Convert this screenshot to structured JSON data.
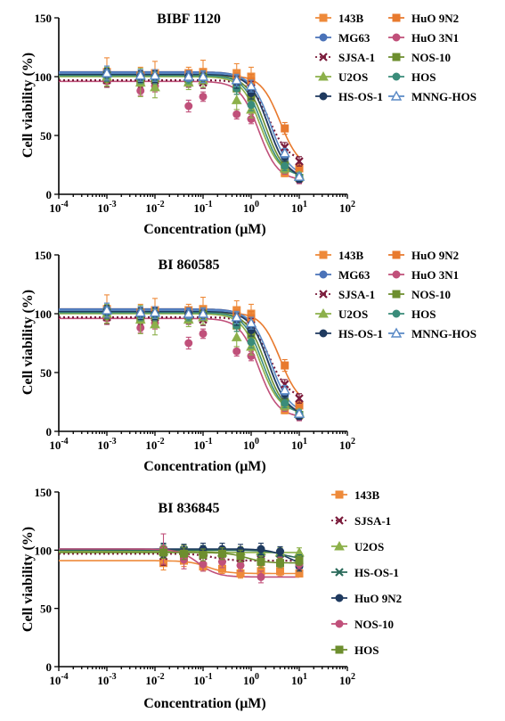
{
  "chart_data": [
    {
      "type": "scatter",
      "title": "BIBF 1120",
      "xlabel": "Concentration (μM)",
      "ylabel": "Cell viability (%)",
      "xscale": "log",
      "xlim": [
        0.0001,
        100
      ],
      "ylim": [
        0,
        150
      ],
      "x_ticks": [
        0.0001,
        0.001,
        0.01,
        0.1,
        1,
        10,
        100
      ],
      "x_tick_labels": [
        {
          "base": "10",
          "exp": "-4"
        },
        {
          "base": "10",
          "exp": "-3"
        },
        {
          "base": "10",
          "exp": "-2"
        },
        {
          "base": "10",
          "exp": "-1"
        },
        {
          "base": "10",
          "exp": "0"
        },
        {
          "base": "10",
          "exp": "1"
        },
        {
          "base": "10",
          "exp": "2"
        }
      ],
      "y_ticks": [
        "0",
        "50",
        "100",
        "150"
      ],
      "legend": "right, two columns",
      "x": [
        0.001,
        0.005,
        0.01,
        0.05,
        0.1,
        0.5,
        1,
        5,
        10
      ],
      "series": [
        {
          "name": "143B",
          "color": "#ee8a3a",
          "marker": "square",
          "line": "solid",
          "values": [
            104,
            100,
            103,
            103,
            104,
            103,
            100,
            18,
            14
          ],
          "errors": [
            12,
            8,
            10,
            5,
            10,
            8,
            8,
            3,
            3
          ]
        },
        {
          "name": "HuO 9N2",
          "color": "#e87a2e",
          "marker": "square",
          "line": "solid",
          "values": [
            100,
            101,
            100,
            99,
            99,
            98,
            96,
            56,
            22
          ],
          "errors": [
            6,
            5,
            6,
            4,
            5,
            5,
            6,
            5,
            4
          ]
        },
        {
          "name": "MG63",
          "color": "#4a72b8",
          "marker": "circle",
          "line": "solid",
          "values": [
            104,
            101,
            100,
            101,
            100,
            96,
            88,
            30,
            14
          ],
          "errors": [
            5,
            5,
            5,
            4,
            4,
            5,
            5,
            4,
            3
          ]
        },
        {
          "name": "HuO 3N1",
          "color": "#c0507a",
          "marker": "circle",
          "line": "solid",
          "values": [
            96,
            88,
            92,
            75,
            83,
            68,
            64,
            20,
            12
          ],
          "errors": [
            5,
            4,
            5,
            5,
            4,
            4,
            4,
            3,
            3
          ]
        },
        {
          "name": "SJSA-1",
          "color": "#7a1a3a",
          "marker": "x",
          "line": "dotted",
          "values": [
            97,
            96,
            97,
            96,
            95,
            93,
            90,
            40,
            28
          ],
          "errors": [
            6,
            5,
            6,
            5,
            5,
            5,
            6,
            4,
            4
          ]
        },
        {
          "name": "NOS-10",
          "color": "#6d8e2e",
          "marker": "square",
          "line": "solid",
          "values": [
            101,
            97,
            98,
            98,
            100,
            90,
            82,
            25,
            14
          ],
          "errors": [
            6,
            5,
            5,
            4,
            5,
            5,
            5,
            4,
            3
          ]
        },
        {
          "name": "U2OS",
          "color": "#8cb04a",
          "marker": "triangle",
          "line": "solid",
          "values": [
            100,
            95,
            91,
            95,
            97,
            80,
            72,
            22,
            16
          ],
          "errors": [
            8,
            12,
            9,
            6,
            6,
            8,
            7,
            4,
            3
          ]
        },
        {
          "name": "HOS",
          "color": "#3a8c7a",
          "marker": "circle",
          "line": "solid",
          "values": [
            101,
            99,
            99,
            98,
            99,
            90,
            76,
            24,
            15
          ],
          "errors": [
            5,
            5,
            5,
            4,
            4,
            5,
            5,
            4,
            3
          ]
        },
        {
          "name": "HS-OS-1",
          "color": "#1f3a5f",
          "marker": "circle",
          "line": "solid",
          "values": [
            102,
            100,
            100,
            100,
            99,
            95,
            86,
            32,
            13
          ],
          "errors": [
            5,
            5,
            5,
            4,
            4,
            5,
            5,
            4,
            3
          ]
        },
        {
          "name": "MNNG-HOS",
          "color": "#5a8ac6",
          "marker": "triangle-open",
          "line": "solid",
          "values": [
            103,
            101,
            101,
            100,
            100,
            97,
            92,
            35,
            15
          ],
          "errors": [
            6,
            5,
            5,
            4,
            5,
            5,
            5,
            4,
            3
          ]
        }
      ]
    },
    {
      "type": "scatter",
      "title": "BI 860585",
      "xlabel": "Concentration (μM)",
      "ylabel": "Cell viability (%)",
      "xscale": "log",
      "xlim": [
        0.0001,
        100
      ],
      "ylim": [
        0,
        150
      ],
      "x_ticks": [
        0.0001,
        0.001,
        0.01,
        0.1,
        1,
        10,
        100
      ],
      "x_tick_labels": [
        {
          "base": "10",
          "exp": "-4"
        },
        {
          "base": "10",
          "exp": "-3"
        },
        {
          "base": "10",
          "exp": "-2"
        },
        {
          "base": "10",
          "exp": "-1"
        },
        {
          "base": "10",
          "exp": "0"
        },
        {
          "base": "10",
          "exp": "1"
        },
        {
          "base": "10",
          "exp": "2"
        }
      ],
      "y_ticks": [
        "0",
        "50",
        "100",
        "150"
      ],
      "legend": "right, two columns",
      "x": [
        0.001,
        0.005,
        0.01,
        0.05,
        0.1,
        0.5,
        1,
        5,
        10
      ],
      "series": [
        {
          "name": "143B",
          "color": "#ee8a3a",
          "marker": "square",
          "line": "solid",
          "values": [
            104,
            100,
            103,
            103,
            104,
            103,
            100,
            18,
            14
          ],
          "errors": [
            12,
            8,
            10,
            5,
            10,
            8,
            8,
            3,
            3
          ]
        },
        {
          "name": "HuO 9N2",
          "color": "#e87a2e",
          "marker": "square",
          "line": "solid",
          "values": [
            100,
            101,
            100,
            99,
            99,
            98,
            96,
            56,
            22
          ],
          "errors": [
            6,
            5,
            6,
            4,
            5,
            5,
            6,
            5,
            4
          ]
        },
        {
          "name": "MG63",
          "color": "#4a72b8",
          "marker": "circle",
          "line": "solid",
          "values": [
            104,
            101,
            100,
            101,
            100,
            96,
            88,
            30,
            14
          ],
          "errors": [
            5,
            5,
            5,
            4,
            4,
            5,
            5,
            4,
            3
          ]
        },
        {
          "name": "HuO 3N1",
          "color": "#c0507a",
          "marker": "circle",
          "line": "solid",
          "values": [
            96,
            88,
            92,
            75,
            83,
            68,
            64,
            20,
            12
          ],
          "errors": [
            5,
            4,
            5,
            5,
            4,
            4,
            4,
            3,
            3
          ]
        },
        {
          "name": "SJSA-1",
          "color": "#7a1a3a",
          "marker": "x",
          "line": "dotted",
          "values": [
            97,
            96,
            97,
            96,
            95,
            93,
            90,
            40,
            28
          ],
          "errors": [
            6,
            5,
            6,
            5,
            5,
            5,
            6,
            4,
            4
          ]
        },
        {
          "name": "NOS-10",
          "color": "#6d8e2e",
          "marker": "square",
          "line": "solid",
          "values": [
            101,
            97,
            98,
            98,
            100,
            90,
            82,
            25,
            14
          ],
          "errors": [
            6,
            5,
            5,
            4,
            5,
            5,
            5,
            4,
            3
          ]
        },
        {
          "name": "U2OS",
          "color": "#8cb04a",
          "marker": "triangle",
          "line": "solid",
          "values": [
            100,
            95,
            91,
            95,
            97,
            80,
            72,
            22,
            16
          ],
          "errors": [
            8,
            12,
            9,
            6,
            6,
            8,
            7,
            4,
            3
          ]
        },
        {
          "name": "HOS",
          "color": "#3a8c7a",
          "marker": "circle",
          "line": "solid",
          "values": [
            101,
            99,
            99,
            98,
            99,
            90,
            76,
            24,
            15
          ],
          "errors": [
            5,
            5,
            5,
            4,
            4,
            5,
            5,
            4,
            3
          ]
        },
        {
          "name": "HS-OS-1",
          "color": "#1f3a5f",
          "marker": "circle",
          "line": "solid",
          "values": [
            102,
            100,
            100,
            100,
            99,
            95,
            86,
            32,
            13
          ],
          "errors": [
            5,
            5,
            5,
            4,
            4,
            5,
            5,
            4,
            3
          ]
        },
        {
          "name": "MNNG-HOS",
          "color": "#5a8ac6",
          "marker": "triangle-open",
          "line": "solid",
          "values": [
            103,
            101,
            101,
            100,
            100,
            97,
            92,
            35,
            15
          ],
          "errors": [
            6,
            5,
            5,
            4,
            5,
            5,
            5,
            4,
            3
          ]
        }
      ]
    },
    {
      "type": "scatter",
      "title": "BI 836845",
      "xlabel": "Concentration (μM)",
      "ylabel": "Cell viability (%)",
      "xscale": "log",
      "xlim": [
        0.0001,
        100
      ],
      "ylim": [
        0,
        150
      ],
      "x_ticks": [
        0.0001,
        0.001,
        0.01,
        0.1,
        1,
        10,
        100
      ],
      "x_tick_labels": [
        {
          "base": "10",
          "exp": "-4"
        },
        {
          "base": "10",
          "exp": "-3"
        },
        {
          "base": "10",
          "exp": "-2"
        },
        {
          "base": "10",
          "exp": "-1"
        },
        {
          "base": "10",
          "exp": "0"
        },
        {
          "base": "10",
          "exp": "1"
        },
        {
          "base": "10",
          "exp": "2"
        }
      ],
      "y_ticks": [
        "0",
        "50",
        "100",
        "150"
      ],
      "legend": "right, single column",
      "x": [
        0.015,
        0.04,
        0.1,
        0.25,
        0.6,
        1.6,
        4,
        10
      ],
      "series": [
        {
          "name": "143B",
          "color": "#ee8a3a",
          "marker": "square",
          "line": "solid",
          "values": [
            89,
            91,
            86,
            84,
            80,
            82,
            82,
            80
          ],
          "errors": [
            6,
            5,
            4,
            4,
            4,
            4,
            4,
            3
          ]
        },
        {
          "name": "SJSA-1",
          "color": "#7a1a3a",
          "marker": "x",
          "line": "dotted",
          "values": [
            95,
            97,
            95,
            93,
            93,
            92,
            92,
            91
          ],
          "errors": [
            8,
            7,
            6,
            5,
            5,
            5,
            5,
            5
          ]
        },
        {
          "name": "U2OS",
          "color": "#8cb04a",
          "marker": "triangle",
          "line": "solid",
          "values": [
            99,
            99,
            99,
            98,
            99,
            99,
            98,
            98
          ],
          "errors": [
            5,
            5,
            5,
            4,
            4,
            4,
            4,
            4
          ]
        },
        {
          "name": "HS-OS-1",
          "color": "#2a6a5a",
          "marker": "x",
          "line": "solid",
          "values": [
            100,
            100,
            99,
            98,
            97,
            98,
            97,
            92
          ],
          "errors": [
            5,
            5,
            5,
            4,
            4,
            4,
            4,
            4
          ]
        },
        {
          "name": "HuO 9N2",
          "color": "#1f3a5f",
          "marker": "circle",
          "line": "solid",
          "values": [
            100,
            100,
            101,
            101,
            100,
            101,
            99,
            86
          ],
          "errors": [
            6,
            5,
            5,
            5,
            5,
            5,
            4,
            4
          ]
        },
        {
          "name": "NOS-10",
          "color": "#c0507a",
          "marker": "circle",
          "line": "solid",
          "values": [
            101,
            92,
            88,
            90,
            87,
            77,
            90,
            88
          ],
          "errors": [
            13,
            8,
            6,
            5,
            5,
            5,
            4,
            4
          ]
        },
        {
          "name": "HOS",
          "color": "#6d8e2e",
          "marker": "square",
          "line": "solid",
          "values": [
            98,
            97,
            96,
            97,
            95,
            90,
            89,
            91
          ],
          "errors": [
            5,
            5,
            5,
            5,
            5,
            5,
            4,
            4
          ]
        }
      ]
    }
  ]
}
